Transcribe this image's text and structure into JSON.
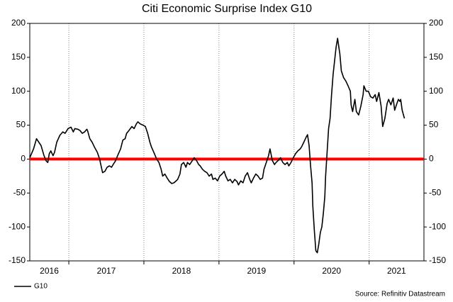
{
  "chart_data": {
    "type": "line",
    "title": "Citi Economic Surprise Index  G10",
    "source": "Source: Refinitiv Datastream",
    "legend": "bottom-left",
    "xlim": [
      2016.48,
      2021.73
    ],
    "xticks": [
      2016,
      2017,
      2018,
      2019,
      2020,
      2021
    ],
    "ylim": [
      -150,
      200
    ],
    "yticks": [
      -150,
      -100,
      -50,
      0,
      50,
      100,
      150,
      200
    ],
    "y2lim": [
      -150,
      200
    ],
    "y2ticks": [
      -150,
      -100,
      -50,
      0,
      50,
      100,
      150,
      200
    ],
    "grid": true,
    "reference_line": {
      "value": 0,
      "color": "#ff0000"
    },
    "x": [
      2016.48,
      2016.53,
      2016.57,
      2016.6,
      2016.63,
      2016.67,
      2016.7,
      2016.72,
      2016.74,
      2016.76,
      2016.79,
      2016.81,
      2016.84,
      2016.88,
      2016.92,
      2016.95,
      2016.99,
      2017.03,
      2017.06,
      2017.08,
      2017.12,
      2017.15,
      2017.18,
      2017.21,
      2017.24,
      2017.25,
      2017.28,
      2017.31,
      2017.34,
      2017.38,
      2017.41,
      2017.43,
      2017.45,
      2017.48,
      2017.51,
      2017.54,
      2017.57,
      2017.59,
      2017.62,
      2017.65,
      2017.69,
      2017.72,
      2017.75,
      2017.77,
      2017.8,
      2017.84,
      2017.87,
      2017.9,
      2017.92,
      2017.95,
      2017.99,
      2018.02,
      2018.05,
      2018.08,
      2018.1,
      2018.14,
      2018.17,
      2018.2,
      2018.23,
      2018.25,
      2018.28,
      2018.31,
      2018.34,
      2018.37,
      2018.4,
      2018.42,
      2018.45,
      2018.48,
      2018.5,
      2018.53,
      2018.56,
      2018.58,
      2018.61,
      2018.64,
      2018.67,
      2018.7,
      2018.73,
      2018.75,
      2018.78,
      2018.81,
      2018.84,
      2018.87,
      2018.9,
      2018.92,
      2018.95,
      2018.98,
      2019.01,
      2019.04,
      2019.07,
      2019.09,
      2019.12,
      2019.15,
      2019.18,
      2019.21,
      2019.24,
      2019.26,
      2019.29,
      2019.32,
      2019.35,
      2019.38,
      2019.41,
      2019.43,
      2019.46,
      2019.49,
      2019.52,
      2019.55,
      2019.58,
      2019.6,
      2019.63,
      2019.66,
      2019.68,
      2019.71,
      2019.74,
      2019.76,
      2019.79,
      2019.82,
      2019.85,
      2019.88,
      2019.91,
      2019.93,
      2019.96,
      2019.99,
      2020.02,
      2020.05,
      2020.08,
      2020.1,
      2020.13,
      2020.16,
      2020.18,
      2020.2,
      2020.22,
      2020.24,
      2020.25,
      2020.27,
      2020.29,
      2020.31,
      2020.33,
      2020.35,
      2020.37,
      2020.39,
      2020.41,
      2020.42,
      2020.44,
      2020.46,
      2020.48,
      2020.5,
      2020.52,
      2020.54,
      2020.56,
      2020.58,
      2020.59,
      2020.61,
      2020.63,
      2020.66,
      2020.69,
      2020.72,
      2020.75,
      2020.76,
      2020.78,
      2020.81,
      2020.83,
      2020.86,
      2020.89,
      2020.92,
      2020.93,
      2020.96,
      2020.99,
      2021.02,
      2021.05,
      2021.08,
      2021.1,
      2021.13,
      2021.16,
      2021.18,
      2021.21,
      2021.24,
      2021.26,
      2021.29,
      2021.32,
      2021.34,
      2021.37,
      2021.39,
      2021.41,
      2021.42,
      2021.44,
      2021.47
    ],
    "series": [
      {
        "name": "G10",
        "color": "#000000",
        "values": [
          2,
          15,
          30,
          25,
          20,
          5,
          -3,
          -5,
          8,
          12,
          5,
          10,
          25,
          35,
          40,
          38,
          45,
          47,
          40,
          45,
          44,
          42,
          38,
          40,
          44,
          42,
          30,
          25,
          18,
          10,
          0,
          -10,
          -20,
          -18,
          -12,
          -10,
          -12,
          -8,
          -3,
          5,
          15,
          28,
          30,
          38,
          42,
          48,
          45,
          52,
          55,
          52,
          50,
          48,
          38,
          25,
          18,
          8,
          0,
          -5,
          -15,
          -25,
          -22,
          -28,
          -33,
          -36,
          -35,
          -33,
          -30,
          -22,
          -8,
          -5,
          -12,
          -5,
          -8,
          -3,
          2,
          -2,
          -8,
          -10,
          -15,
          -18,
          -20,
          -25,
          -22,
          -30,
          -28,
          -32,
          -25,
          -22,
          -18,
          -25,
          -32,
          -30,
          -35,
          -30,
          -33,
          -38,
          -32,
          -35,
          -25,
          -20,
          -30,
          -35,
          -28,
          -22,
          -25,
          -30,
          -28,
          -15,
          -5,
          5,
          15,
          -2,
          -8,
          -5,
          -2,
          2,
          -5,
          -8,
          -5,
          -10,
          -5,
          2,
          8,
          12,
          15,
          18,
          25,
          32,
          36,
          20,
          -10,
          -35,
          -70,
          -105,
          -135,
          -138,
          -125,
          -108,
          -100,
          -80,
          -55,
          -25,
          10,
          45,
          60,
          95,
          125,
          145,
          165,
          178,
          170,
          155,
          130,
          120,
          115,
          108,
          100,
          80,
          70,
          88,
          70,
          65,
          78,
          95,
          108,
          100,
          100,
          92,
          90,
          95,
          85,
          98,
          78,
          48,
          60,
          82,
          88,
          80,
          90,
          72,
          82,
          88,
          85,
          88,
          72,
          60
        ]
      }
    ]
  }
}
